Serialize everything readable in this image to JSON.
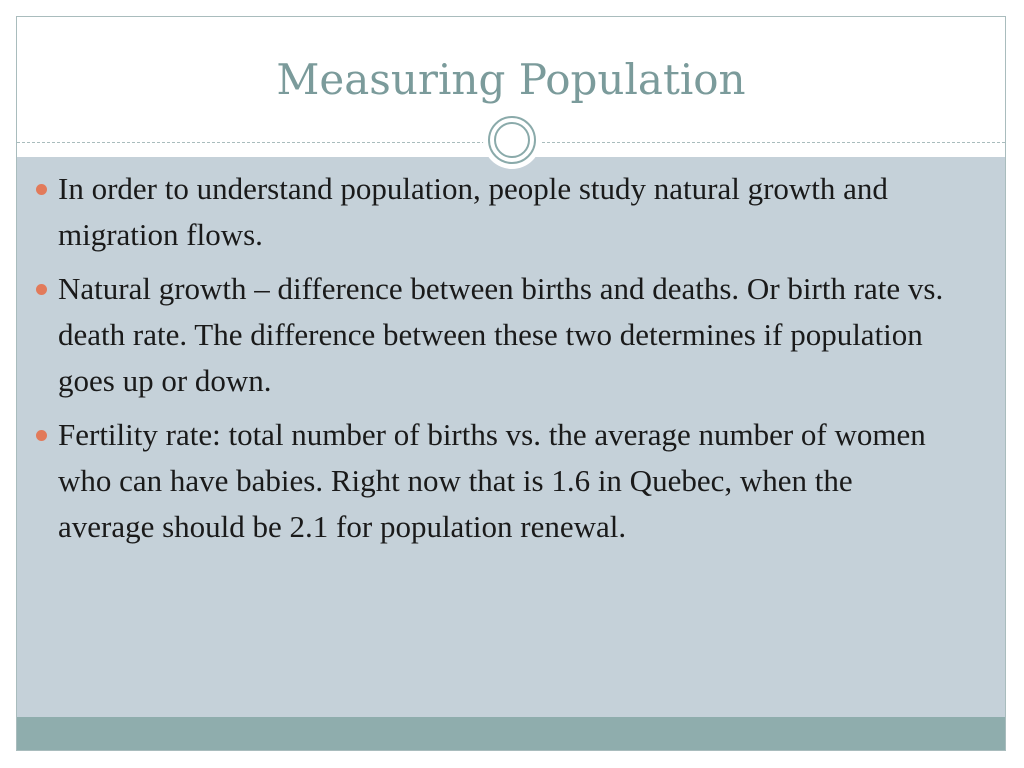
{
  "slide": {
    "title": "Measuring Population",
    "bullets": [
      {
        "text": "In order to understand population, people study natural growth and migration flows."
      },
      {
        "text": "Natural growth – difference between births and deaths.  Or birth rate vs. death rate. The difference between these two determines if population goes up or down."
      },
      {
        "text": "Fertility rate: total number of births vs. the average number of women who can have babies. Right now that is 1.6 in Quebec, when the average should be 2.1 for population renewal."
      }
    ]
  },
  "colors": {
    "title": "#7b9b9b",
    "content_background": "#c5d1d9",
    "bullet_marker": "#e27a5a",
    "footer_band": "#8fadad",
    "ornament_ring": "#8aaaaa"
  },
  "icons": {
    "ornament": "double-ring-ornament-icon",
    "bullet_marker": "round-bullet-icon"
  }
}
